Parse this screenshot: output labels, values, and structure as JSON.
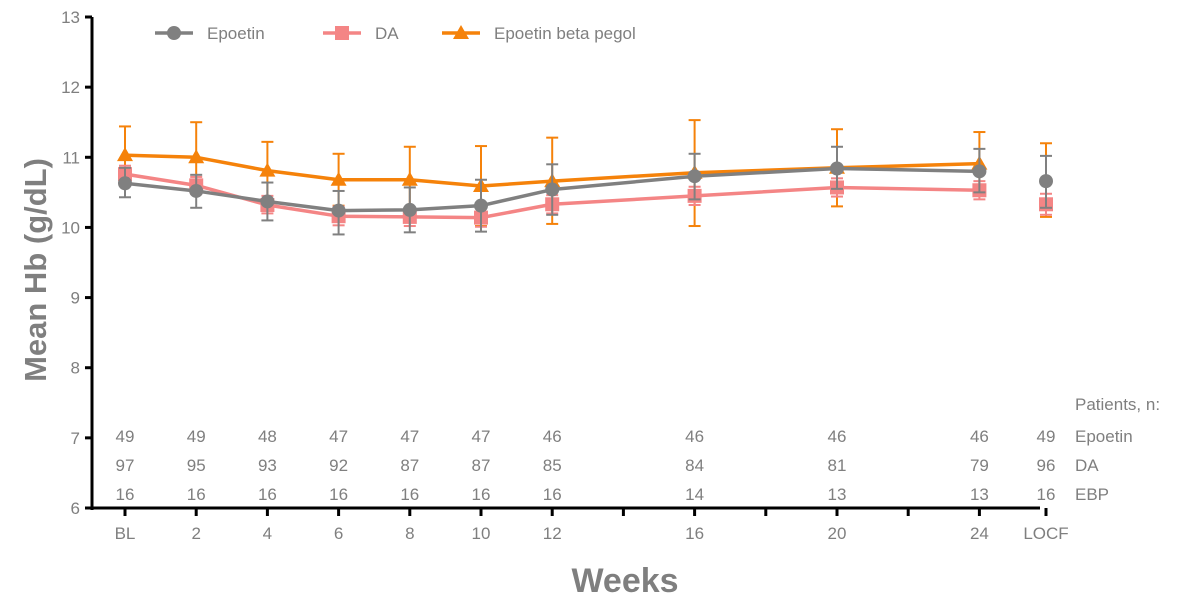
{
  "chart_data": {
    "type": "line",
    "xlabel": "Weeks",
    "ylabel": "Mean Hb (g/dL)",
    "ylim": [
      6,
      13
    ],
    "yticks": [
      "6",
      "7",
      "8",
      "9",
      "10",
      "11",
      "12",
      "13"
    ],
    "xticks": [
      {
        "x": 0,
        "label": "BL"
      },
      {
        "x": 2,
        "label": "2"
      },
      {
        "x": 4,
        "label": "4"
      },
      {
        "x": 6,
        "label": "6"
      },
      {
        "x": 8,
        "label": "8"
      },
      {
        "x": 10,
        "label": "10"
      },
      {
        "x": 12,
        "label": "12"
      },
      {
        "x": 14,
        "label": ""
      },
      {
        "x": 16,
        "label": "16"
      },
      {
        "x": 18,
        "label": ""
      },
      {
        "x": 20,
        "label": "20"
      },
      {
        "x": 22,
        "label": ""
      },
      {
        "x": 24,
        "label": "24"
      },
      {
        "x": "LOCF",
        "label": "LOCF"
      }
    ],
    "legend_position": "top-left",
    "series": [
      {
        "name": "Epoetin",
        "color": "#808080",
        "marker": "circle",
        "points": [
          {
            "x": 0,
            "y": 10.63,
            "lo": 10.43,
            "hi": 10.85
          },
          {
            "x": 2,
            "y": 10.52,
            "lo": 10.28,
            "hi": 10.75
          },
          {
            "x": 4,
            "y": 10.37,
            "lo": 10.1,
            "hi": 10.64
          },
          {
            "x": 6,
            "y": 10.24,
            "lo": 9.9,
            "hi": 10.52
          },
          {
            "x": 8,
            "y": 10.25,
            "lo": 9.93,
            "hi": 10.57
          },
          {
            "x": 10,
            "y": 10.31,
            "lo": 9.94,
            "hi": 10.68
          },
          {
            "x": 12,
            "y": 10.54,
            "lo": 10.18,
            "hi": 10.9
          },
          {
            "x": 16,
            "y": 10.73,
            "lo": 10.4,
            "hi": 11.05
          },
          {
            "x": 20,
            "y": 10.84,
            "lo": 10.55,
            "hi": 11.15
          },
          {
            "x": 24,
            "y": 10.8,
            "lo": 10.5,
            "hi": 11.12
          },
          {
            "x": "LOCF",
            "y": 10.66,
            "lo": 10.28,
            "hi": 11.02
          }
        ]
      },
      {
        "name": "DA",
        "color": "#f48585",
        "marker": "square",
        "points": [
          {
            "x": 0,
            "y": 10.76,
            "lo": 10.66,
            "hi": 10.88
          },
          {
            "x": 2,
            "y": 10.6,
            "lo": 10.48,
            "hi": 10.72
          },
          {
            "x": 4,
            "y": 10.32,
            "lo": 10.2,
            "hi": 10.45
          },
          {
            "x": 6,
            "y": 10.16,
            "lo": 10.03,
            "hi": 10.3
          },
          {
            "x": 8,
            "y": 10.15,
            "lo": 10.02,
            "hi": 10.28
          },
          {
            "x": 10,
            "y": 10.14,
            "lo": 10.01,
            "hi": 10.27
          },
          {
            "x": 12,
            "y": 10.33,
            "lo": 10.2,
            "hi": 10.46
          },
          {
            "x": 16,
            "y": 10.45,
            "lo": 10.32,
            "hi": 10.58
          },
          {
            "x": 20,
            "y": 10.57,
            "lo": 10.44,
            "hi": 10.7
          },
          {
            "x": 24,
            "y": 10.53,
            "lo": 10.4,
            "hi": 10.66
          },
          {
            "x": "LOCF",
            "y": 10.33,
            "lo": 10.18,
            "hi": 10.48
          }
        ]
      },
      {
        "name": "Epoetin beta pegol",
        "color": "#f5820a",
        "marker": "triangle",
        "points": [
          {
            "x": 0,
            "y": 11.03,
            "lo": 10.6,
            "hi": 11.44
          },
          {
            "x": 2,
            "y": 11.0,
            "lo": 10.52,
            "hi": 11.5
          },
          {
            "x": 4,
            "y": 10.81,
            "lo": 10.4,
            "hi": 11.22
          },
          {
            "x": 6,
            "y": 10.68,
            "lo": 10.31,
            "hi": 11.05
          },
          {
            "x": 8,
            "y": 10.68,
            "lo": 10.2,
            "hi": 11.15
          },
          {
            "x": 10,
            "y": 10.59,
            "lo": 10.02,
            "hi": 11.16
          },
          {
            "x": 12,
            "y": 10.66,
            "lo": 10.05,
            "hi": 11.28
          },
          {
            "x": 16,
            "y": 10.78,
            "lo": 10.02,
            "hi": 11.53
          },
          {
            "x": 20,
            "y": 10.85,
            "lo": 10.3,
            "hi": 11.4
          },
          {
            "x": 24,
            "y": 10.91,
            "lo": 10.45,
            "hi": 11.36
          },
          {
            "x": "LOCF",
            "y": null,
            "lo": 10.15,
            "hi": 11.2
          }
        ]
      }
    ],
    "patients_table": {
      "header": "Patients, n:",
      "rows": [
        {
          "label": "Epoetin",
          "counts": [
            "49",
            "49",
            "48",
            "47",
            "47",
            "47",
            "46",
            "46",
            "46",
            "46",
            "49"
          ]
        },
        {
          "label": "DA",
          "counts": [
            "97",
            "95",
            "93",
            "92",
            "87",
            "87",
            "85",
            "84",
            "81",
            "79",
            "96"
          ]
        },
        {
          "label": "EBP",
          "counts": [
            "16",
            "16",
            "16",
            "16",
            "16",
            "16",
            "16",
            "14",
            "13",
            "13",
            "16"
          ]
        }
      ]
    }
  }
}
